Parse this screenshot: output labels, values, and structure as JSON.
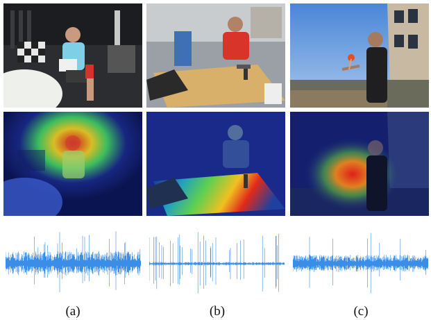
{
  "figure": {
    "columns": [
      {
        "caption": "(a)",
        "scene": "lab-seated-person-reading"
      },
      {
        "caption": "(b)",
        "scene": "lab-person-hammering-board"
      },
      {
        "caption": "(c)",
        "scene": "outdoor-person-holding-toy"
      }
    ],
    "rows": [
      "photo",
      "attention-heatmap-overlay",
      "audio-waveform"
    ],
    "colors": {
      "waveform": "#3b8ee8",
      "heatmap_low": "#1a2a8a",
      "heatmap_high": "#e0201a"
    }
  }
}
